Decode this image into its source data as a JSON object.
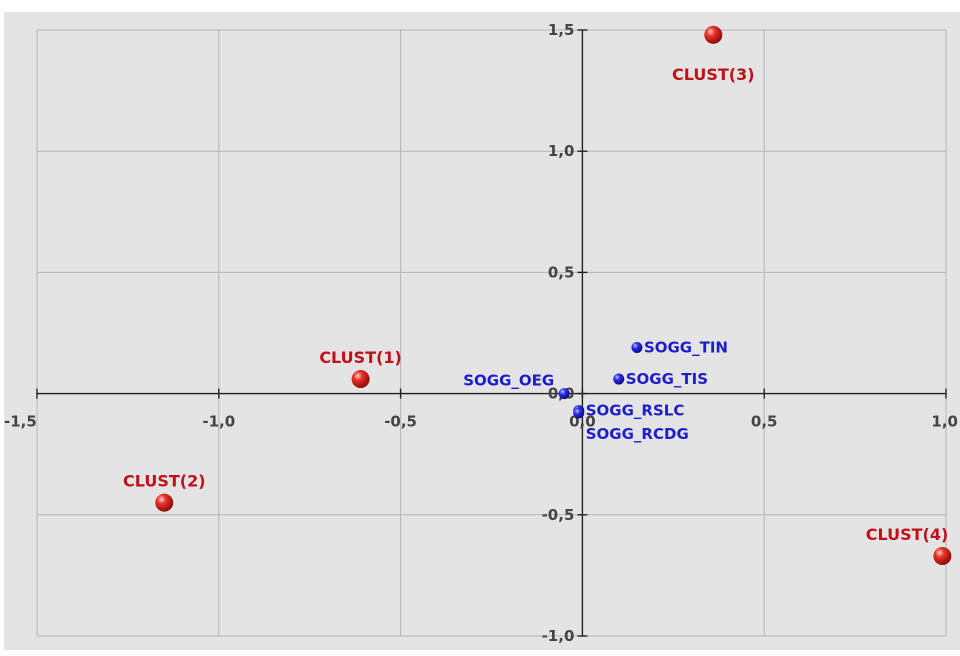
{
  "chart_data": {
    "type": "scatter",
    "xlim": [
      -1.5,
      1.0
    ],
    "ylim": [
      -1.0,
      1.5
    ],
    "x_ticks": [
      {
        "value": -1.5,
        "label": "-1,5"
      },
      {
        "value": -1.0,
        "label": "-1,0"
      },
      {
        "value": -0.5,
        "label": "-0,5"
      },
      {
        "value": 0.0,
        "label": "0,0"
      },
      {
        "value": 0.5,
        "label": "0,5"
      },
      {
        "value": 1.0,
        "label": "1,0"
      }
    ],
    "y_ticks": [
      {
        "value": 1.5,
        "label": "1,5"
      },
      {
        "value": 1.0,
        "label": "1,0"
      },
      {
        "value": 0.5,
        "label": "0,5"
      },
      {
        "value": 0.0,
        "label": "0,0"
      },
      {
        "value": -0.5,
        "label": "-0,5"
      },
      {
        "value": -1.0,
        "label": "-1,0"
      }
    ],
    "grid": true,
    "series": [
      {
        "name": "",
        "color": "#cc1010",
        "marker": "large-sphere",
        "points": [
          {
            "label": "CLUST(1)",
            "x": -0.61,
            "y": 0.06,
            "label_side": "above"
          },
          {
            "label": "CLUST(2)",
            "x": -1.15,
            "y": -0.45,
            "label_side": "above"
          },
          {
            "label": "CLUST(3)",
            "x": 0.36,
            "y": 1.48,
            "label_side": "below"
          },
          {
            "label": "CLUST(4)",
            "x": 0.99,
            "y": -0.67,
            "label_side": "above"
          }
        ]
      },
      {
        "name": "",
        "color": "#1e1ec8",
        "marker": "small-dot",
        "points": [
          {
            "label": "SOGG_TIN",
            "x": 0.15,
            "y": 0.19,
            "label_side": "right"
          },
          {
            "label": "SOGG_TIS",
            "x": 0.1,
            "y": 0.06,
            "label_side": "right"
          },
          {
            "label": "SOGG_OEG",
            "x": -0.05,
            "y": 0.0,
            "label_side": "left"
          },
          {
            "label": "SOGG_RSLC",
            "x": -0.01,
            "y": -0.07,
            "label_side": "right"
          },
          {
            "label": "SOGG_RCDG",
            "x": -0.01,
            "y": -0.08,
            "label_side": "right-below"
          }
        ]
      }
    ]
  }
}
